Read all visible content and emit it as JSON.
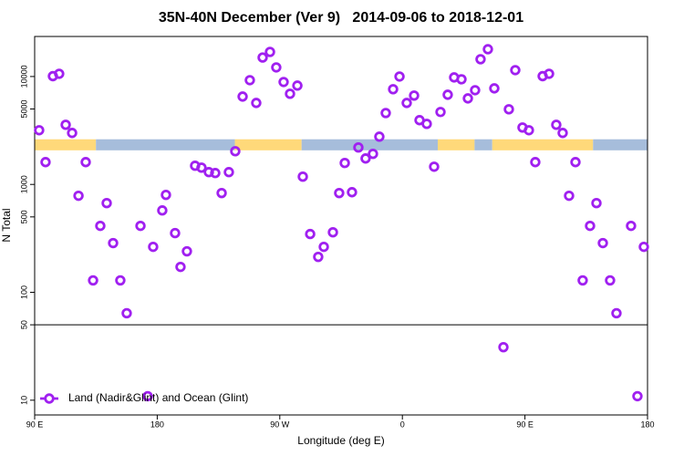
{
  "chart_data": {
    "type": "scatter",
    "title": "35N-40N December (Ver 9)   2014-09-06 to 2018-12-01",
    "x_label": "Longitude (deg E)",
    "y_label": "N Total",
    "log_y": true,
    "xlim": [
      90,
      540
    ],
    "xticks": [
      {
        "value": 90,
        "label": "90 E"
      },
      {
        "value": 180,
        "label": "180"
      },
      {
        "value": 270,
        "label": "90 W"
      },
      {
        "value": 360,
        "label": "0"
      },
      {
        "value": 450,
        "label": "90 E"
      },
      {
        "value": 540,
        "label": "180"
      }
    ],
    "ylim": [
      7.3,
      23500
    ],
    "yticks": [
      10,
      50,
      100,
      500,
      1000,
      5000,
      10000
    ],
    "reference_line": 50,
    "legend": "bottom-left",
    "surface_strip": {
      "ylim": [
        2070,
        2620
      ],
      "segments": [
        {
          "start": 90,
          "end": 135,
          "color": "#ffd97a"
        },
        {
          "start": 135,
          "end": 237,
          "color": "#a6bddb"
        },
        {
          "start": 237,
          "end": 286,
          "color": "#ffd97a"
        },
        {
          "start": 286,
          "end": 386,
          "color": "#a6bddb"
        },
        {
          "start": 386,
          "end": 413,
          "color": "#ffd97a"
        },
        {
          "start": 413,
          "end": 426,
          "color": "#a6bddb"
        },
        {
          "start": 426,
          "end": 500,
          "color": "#ffd97a"
        },
        {
          "start": 500,
          "end": 540,
          "color": "#a6bddb"
        }
      ]
    },
    "series": [
      {
        "name": "Land (Nadir&Glint) and Ocean (Glint)",
        "color": "#a020f0",
        "x": [
          93.3,
          98,
          103.4,
          108,
          112.8,
          117.5,
          122.2,
          127.5,
          132.9,
          138.2,
          142.9,
          147.6,
          152.9,
          157.6,
          167.7,
          173,
          177,
          183.7,
          186.4,
          193.1,
          197.1,
          201.8,
          207.8,
          212.5,
          217.9,
          222.6,
          227.3,
          232.6,
          237.3,
          242.7,
          248,
          252.7,
          257.4,
          262.8,
          267.4,
          272.8,
          277.5,
          282.9,
          286.9,
          292.3,
          298.2,
          302.3,
          309,
          313.6,
          317.7,
          323,
          327.7,
          333,
          338.4,
          343.1,
          347.8,
          353.2,
          357.9,
          363.2,
          368.6,
          372.6,
          377.9,
          383.3,
          388,
          393.3,
          398,
          403.4,
          408.1,
          413.4,
          417.4,
          422.8,
          427.5,
          434.2,
          438.2,
          442.9,
          448.2,
          452.9,
          457.6,
          463,
          467.7,
          473,
          477.7,
          482.4,
          487.1,
          492.4,
          497.8,
          502.5,
          507.2,
          512.5,
          517.2,
          527.9,
          532.6,
          537.3
        ],
        "values": [
          3180,
          1610,
          10080,
          10600,
          3570,
          3000,
          785,
          1610,
          129,
          413,
          671,
          286,
          129,
          64,
          413,
          10.9,
          264,
          574,
          800,
          354,
          172,
          240,
          1490,
          1430,
          1300,
          1275,
          832,
          1300,
          2030,
          6520,
          9250,
          5690,
          15000,
          16900,
          12150,
          8900,
          6920,
          8240,
          1180,
          347,
          213,
          264,
          360,
          832,
          1580,
          847,
          2200,
          1740,
          1920,
          2770,
          4590,
          7630,
          10000,
          5690,
          6660,
          3940,
          3640,
          1460,
          4690,
          6780,
          9810,
          9430,
          6270,
          7470,
          14460,
          17900,
          7770,
          31,
          4970,
          11460,
          3370,
          3180,
          1610,
          10080,
          10600,
          3570,
          3000,
          785,
          1610,
          129,
          413,
          671,
          286,
          129,
          64,
          413,
          10.9,
          264
        ]
      }
    ]
  }
}
